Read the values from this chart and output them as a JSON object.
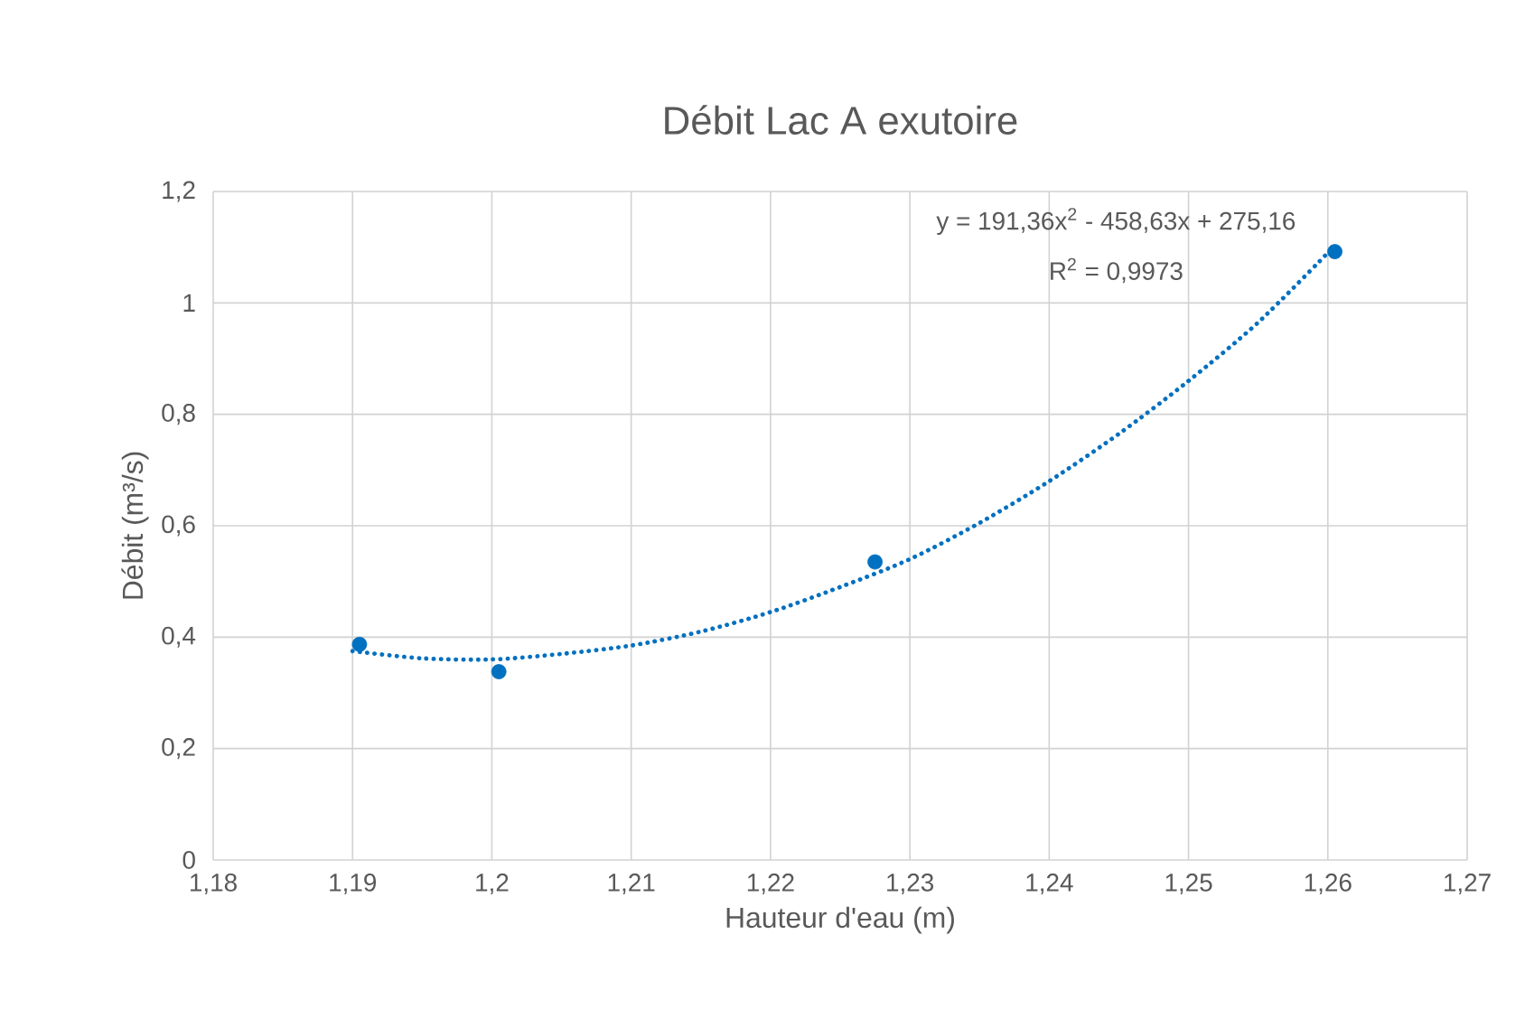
{
  "chart_data": {
    "type": "scatter",
    "title": "Débit Lac A exutoire",
    "xlabel": "Hauteur d'eau (m)",
    "ylabel": "Débit (m³/s)",
    "series": [
      {
        "type": "scatter",
        "color": "#0070c0",
        "x": [
          1.1905,
          1.2005,
          1.2275,
          1.2605
        ],
        "values": [
          0.387,
          0.338,
          0.535,
          1.092
        ]
      },
      {
        "type": "line",
        "color": "#0070c0",
        "line_style": "dotted",
        "x": [
          1.19,
          1.195,
          1.2,
          1.205,
          1.21,
          1.215,
          1.22,
          1.225,
          1.23,
          1.235,
          1.24,
          1.245,
          1.25,
          1.255,
          1.26
        ],
        "values": [
          0.375,
          0.362,
          0.36,
          0.37,
          0.385,
          0.41,
          0.445,
          0.49,
          0.54,
          0.605,
          0.68,
          0.765,
          0.86,
          0.965,
          1.09
        ]
      }
    ],
    "xlim": [
      1.18,
      1.27
    ],
    "xticks": [
      {
        "value": 1.18,
        "label": "1,18"
      },
      {
        "value": 1.19,
        "label": "1,19"
      },
      {
        "value": 1.2,
        "label": "1,2"
      },
      {
        "value": 1.21,
        "label": "1,21"
      },
      {
        "value": 1.22,
        "label": "1,22"
      },
      {
        "value": 1.23,
        "label": "1,23"
      },
      {
        "value": 1.24,
        "label": "1,24"
      },
      {
        "value": 1.25,
        "label": "1,25"
      },
      {
        "value": 1.26,
        "label": "1,26"
      },
      {
        "value": 1.27,
        "label": "1,27"
      }
    ],
    "ylim": [
      0,
      1.2
    ],
    "yticks": [
      0,
      {
        "value": 0.2,
        "label": "0,2"
      },
      {
        "value": 0.4,
        "label": "0,4"
      },
      {
        "value": 0.6,
        "label": "0,6"
      },
      {
        "value": 0.8,
        "label": "0,8"
      },
      1,
      {
        "value": 1.2,
        "label": "1,2"
      }
    ],
    "grid": true,
    "annotations": [
      "y = 191,36x$^{2}$ - 458,63x + 275,16",
      "R$^{2}$ = 0,9973"
    ]
  }
}
